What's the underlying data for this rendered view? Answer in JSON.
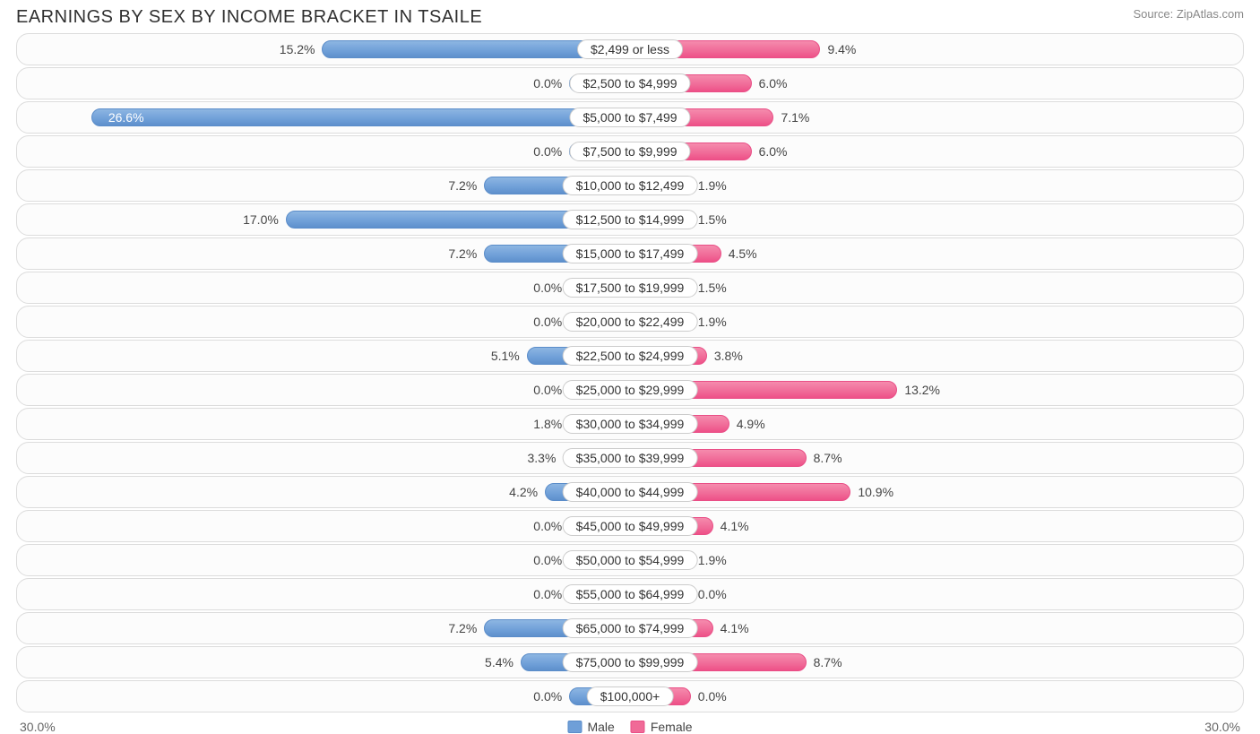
{
  "title": "EARNINGS BY SEX BY INCOME BRACKET IN TSAILE",
  "source": "Source: ZipAtlas.com",
  "axis_max": 30.0,
  "axis_label_left": "30.0%",
  "axis_label_right": "30.0%",
  "min_bar_pct": 3.0,
  "inside_threshold": 22.0,
  "colors": {
    "male_fill": "#6f9fd8",
    "male_border": "#5a8cc9",
    "female_fill": "#f06a97",
    "female_border": "#e94e86",
    "row_border": "#dcdcdc",
    "row_bg": "#fcfcfc",
    "text": "#444444",
    "title_text": "#303030",
    "source_text": "#888888",
    "label_border": "#cccccc"
  },
  "legend": {
    "male": "Male",
    "female": "Female"
  },
  "rows": [
    {
      "label": "$2,499 or less",
      "male": 15.2,
      "female": 9.4
    },
    {
      "label": "$2,500 to $4,999",
      "male": 0.0,
      "female": 6.0
    },
    {
      "label": "$5,000 to $7,499",
      "male": 26.6,
      "female": 7.1
    },
    {
      "label": "$7,500 to $9,999",
      "male": 0.0,
      "female": 6.0
    },
    {
      "label": "$10,000 to $12,499",
      "male": 7.2,
      "female": 1.9
    },
    {
      "label": "$12,500 to $14,999",
      "male": 17.0,
      "female": 1.5
    },
    {
      "label": "$15,000 to $17,499",
      "male": 7.2,
      "female": 4.5
    },
    {
      "label": "$17,500 to $19,999",
      "male": 0.0,
      "female": 1.5
    },
    {
      "label": "$20,000 to $22,499",
      "male": 0.0,
      "female": 1.9
    },
    {
      "label": "$22,500 to $24,999",
      "male": 5.1,
      "female": 3.8
    },
    {
      "label": "$25,000 to $29,999",
      "male": 0.0,
      "female": 13.2
    },
    {
      "label": "$30,000 to $34,999",
      "male": 1.8,
      "female": 4.9
    },
    {
      "label": "$35,000 to $39,999",
      "male": 3.3,
      "female": 8.7
    },
    {
      "label": "$40,000 to $44,999",
      "male": 4.2,
      "female": 10.9
    },
    {
      "label": "$45,000 to $49,999",
      "male": 0.0,
      "female": 4.1
    },
    {
      "label": "$50,000 to $54,999",
      "male": 0.0,
      "female": 1.9
    },
    {
      "label": "$55,000 to $64,999",
      "male": 0.0,
      "female": 0.0
    },
    {
      "label": "$65,000 to $74,999",
      "male": 7.2,
      "female": 4.1
    },
    {
      "label": "$75,000 to $99,999",
      "male": 5.4,
      "female": 8.7
    },
    {
      "label": "$100,000+",
      "male": 0.0,
      "female": 0.0
    }
  ]
}
